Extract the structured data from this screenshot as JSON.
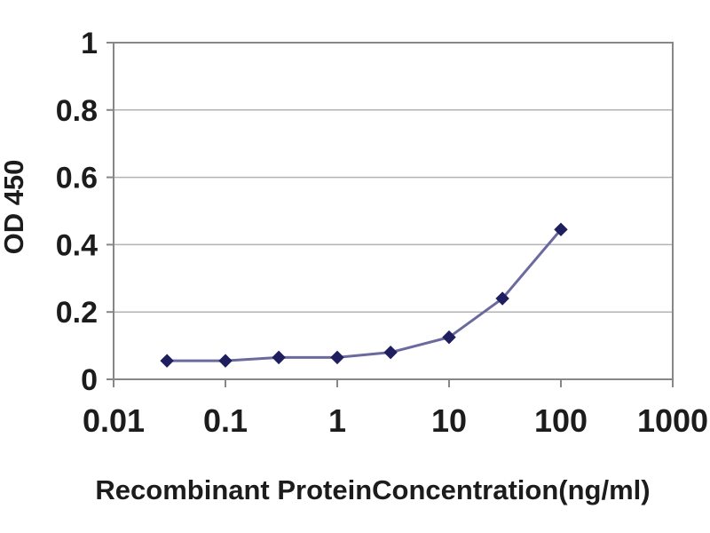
{
  "chart_data": {
    "type": "line",
    "title": "",
    "xlabel": "Recombinant ProteinConcentration(ng/ml)",
    "ylabel": "OD 450",
    "x_scale": "log",
    "xlim": [
      0.01,
      1000
    ],
    "ylim": [
      0,
      1
    ],
    "x": [
      0.03,
      0.1,
      0.3,
      1,
      3,
      10,
      30,
      100
    ],
    "y": [
      0.055,
      0.055,
      0.065,
      0.065,
      0.08,
      0.125,
      0.24,
      0.445
    ],
    "x_tick_values": [
      0.01,
      0.1,
      1,
      10,
      100,
      1000
    ],
    "x_tick_labels": [
      "0.01",
      "0.1",
      "1",
      "10",
      "100",
      "1000"
    ],
    "y_tick_values": [
      0,
      0.2,
      0.4,
      0.6,
      0.8,
      1
    ],
    "y_tick_labels": [
      "0",
      "0.2",
      "0.4",
      "0.6",
      "0.8",
      "1"
    ],
    "grid": "horizontal-only",
    "legend": "none",
    "marker": "diamond",
    "colors": {
      "line": "#6a6a9e",
      "marker": "#1f1f5f",
      "gridline": "#b3b3b3",
      "axis_border": "#878787",
      "tick": "#878787",
      "text": "#1c1c1c",
      "plot_background": "#ffffff"
    }
  }
}
